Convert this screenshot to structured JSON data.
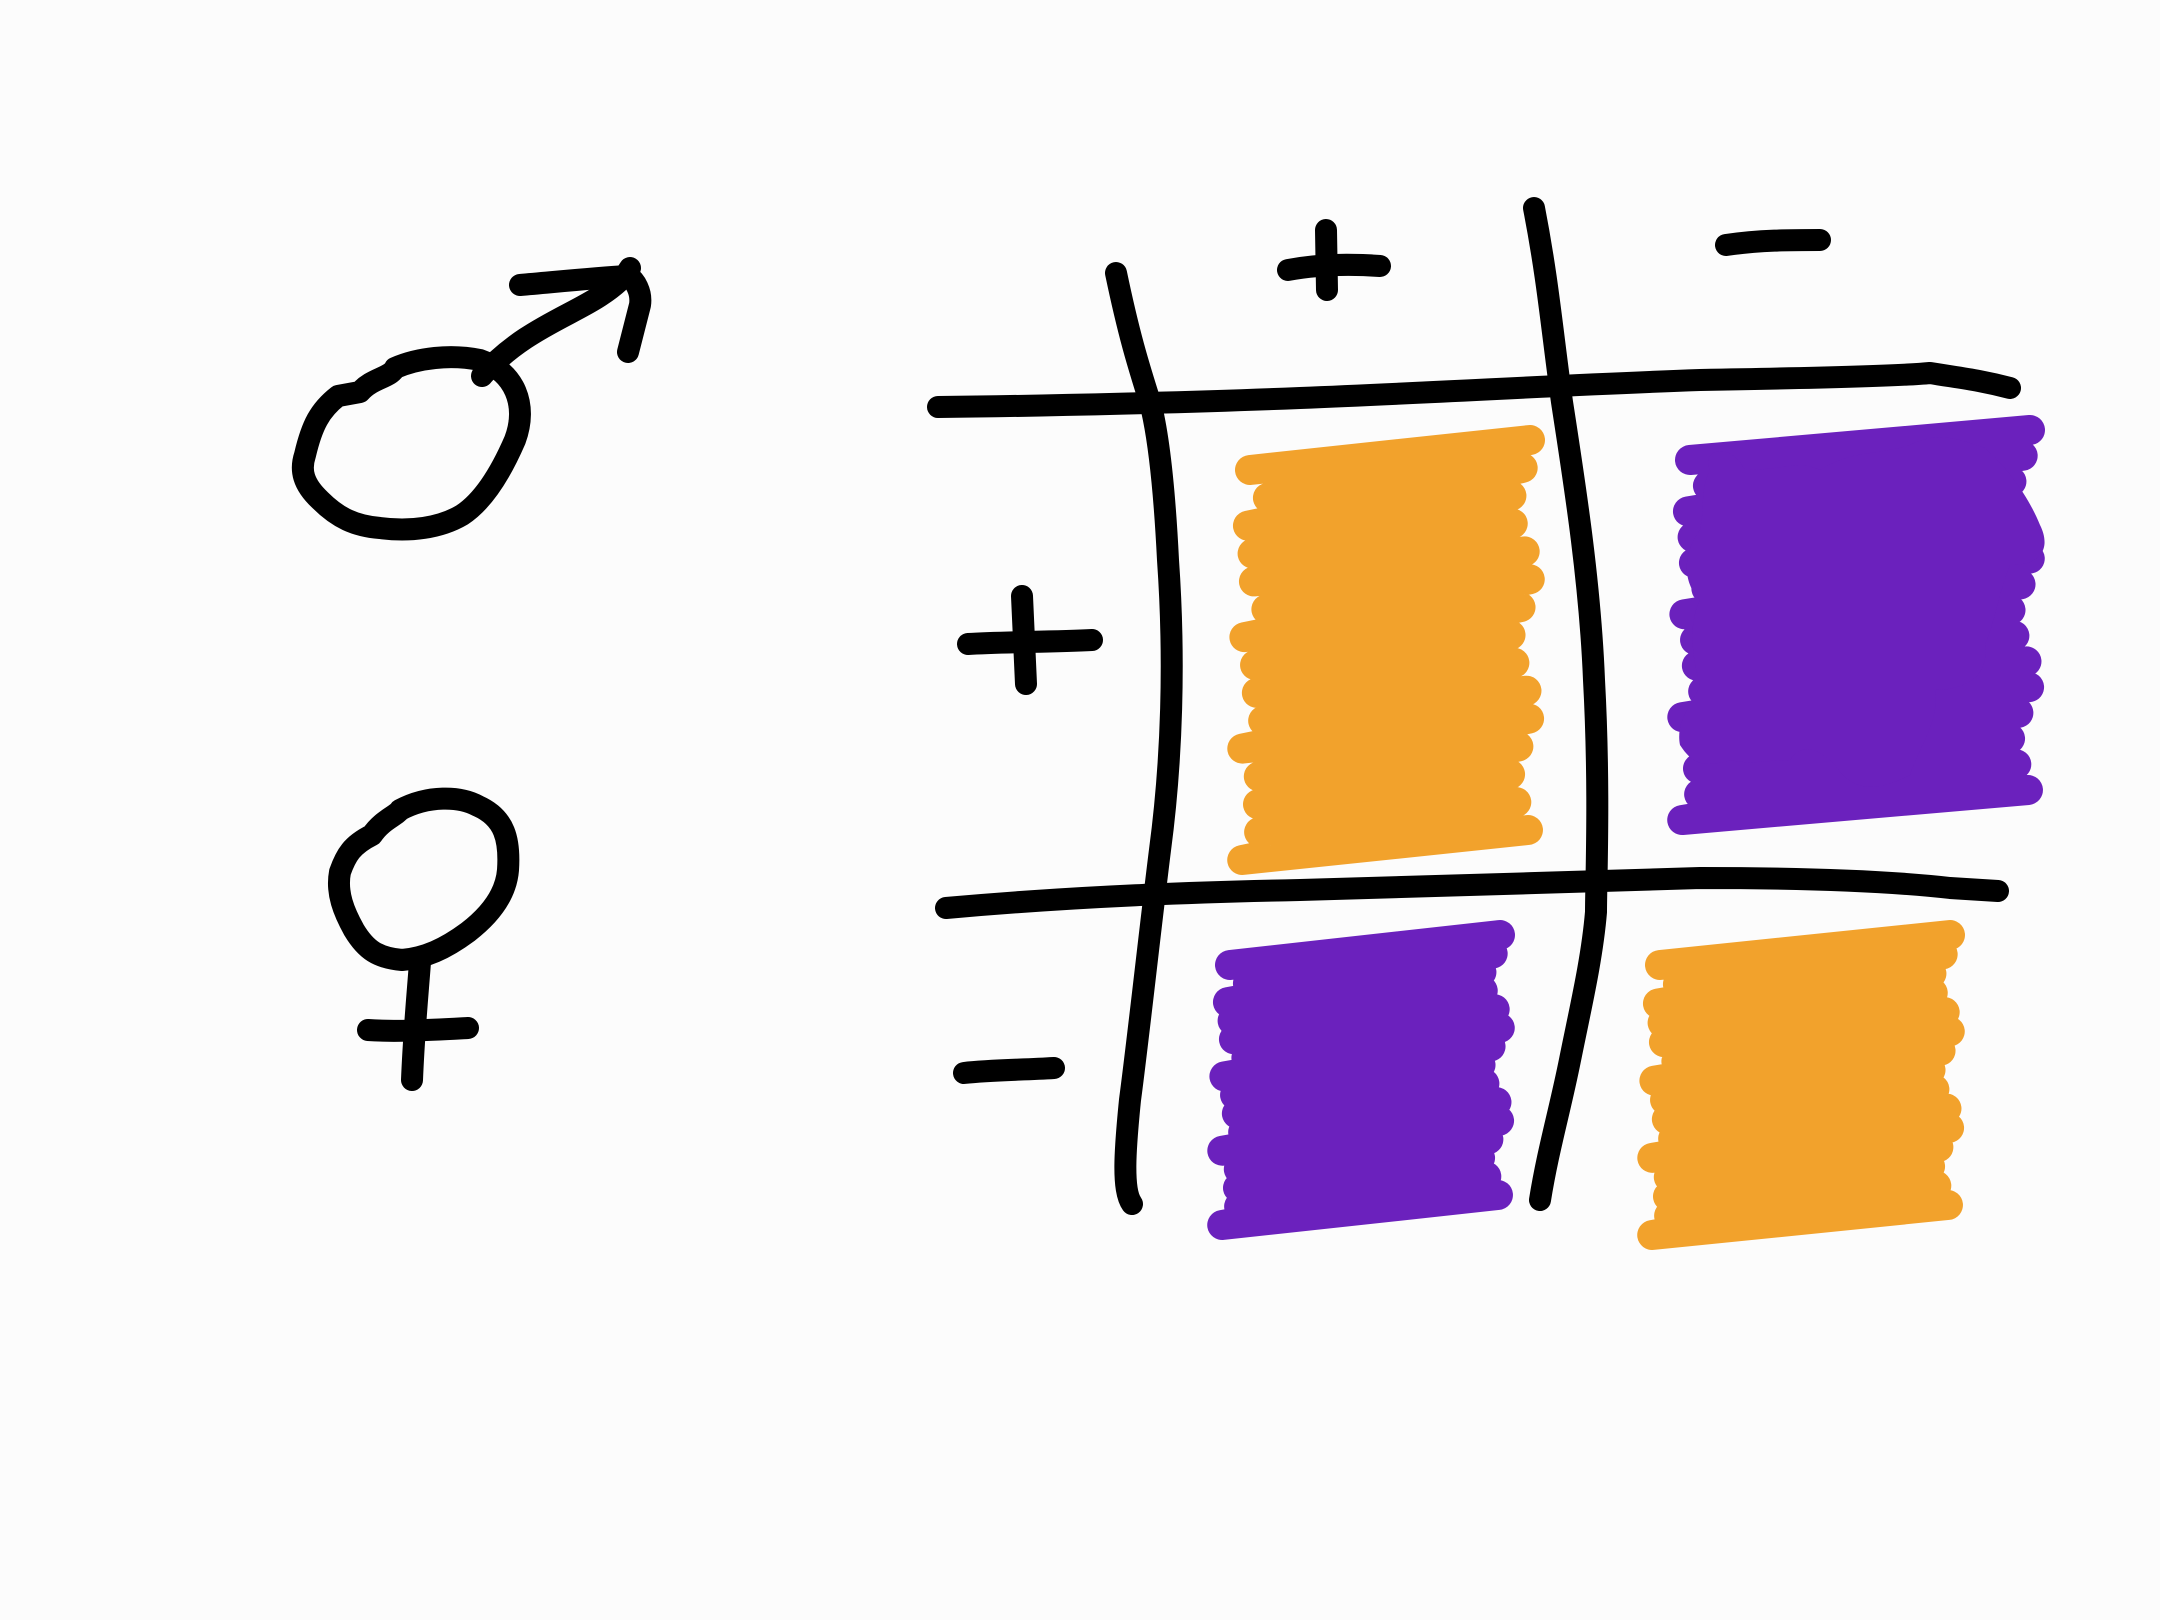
{
  "symbols": {
    "parent_top": "male-symbol-icon",
    "parent_bottom": "female-symbol-icon"
  },
  "column_headers": [
    "+",
    "−"
  ],
  "row_headers": [
    "+",
    "−"
  ],
  "cells": [
    {
      "row": 0,
      "col": 0,
      "fill": "orange"
    },
    {
      "row": 0,
      "col": 1,
      "fill": "purple"
    },
    {
      "row": 1,
      "col": 0,
      "fill": "purple"
    },
    {
      "row": 1,
      "col": 1,
      "fill": "orange"
    }
  ],
  "colors": {
    "ink": "#000000",
    "orange": "#F2A22C",
    "purple": "#6B21BD",
    "background": "#FCFCFC"
  }
}
